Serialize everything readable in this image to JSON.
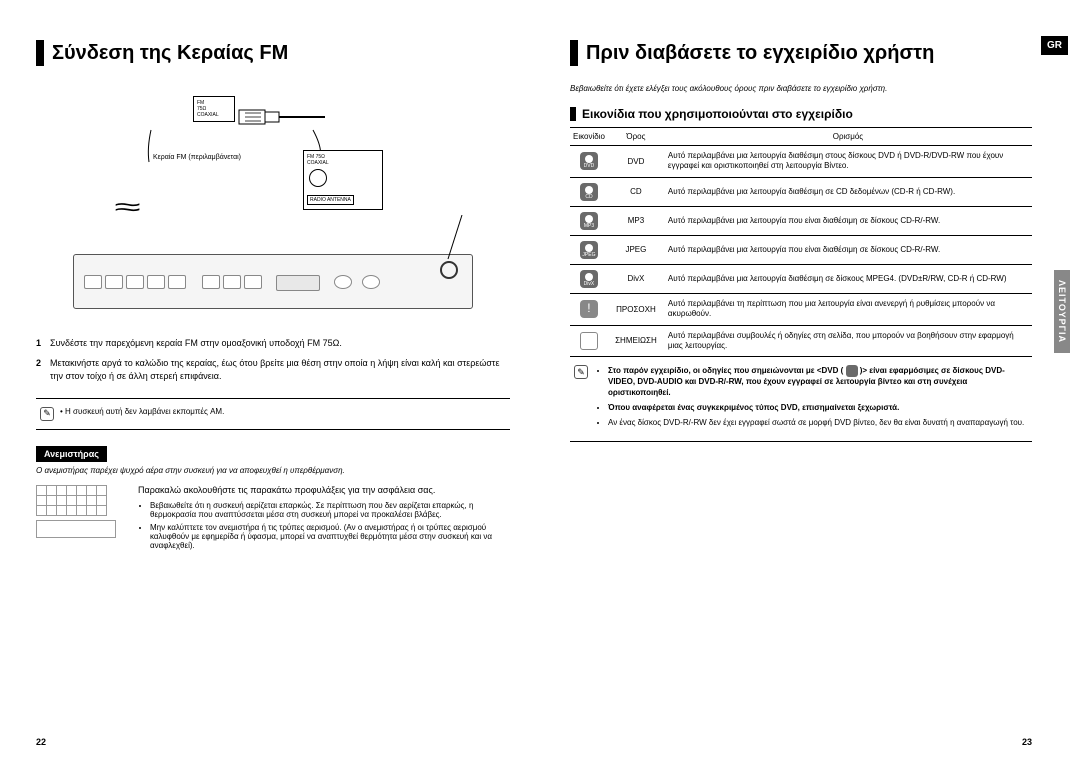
{
  "left": {
    "heading": "Σύνδεση της Κεραίας FM",
    "diagram": {
      "fm_label": "FM\n75Ω",
      "coax_label": "COAXIAL",
      "antenna_caption": "Κεραία FM (περιλαμβάνεται)",
      "radio_antenna_box": "RADIO ANTENNA"
    },
    "steps": [
      "Συνδέστε την παρεχόμενη κεραία FM στην ομοαξονική υποδοχή FM 75Ω.",
      "Μετακινήστε αργά το καλώδιο της κεραίας, έως ότου βρείτε μια θέση στην οποία η λήψη είναι καλή και στερεώστε την στον τοίχο ή σε άλλη στερεή επιφάνεια."
    ],
    "note": "Η συσκευή αυτή δεν λαμβάνει εκπομπές AM.",
    "fan": {
      "title": "Ανεμιστήρας",
      "italic": "Ο ανεμιστήρας παρέχει ψυχρό αέρα στην συσκευή για να αποφευχθεί η υπερθέρμανση.",
      "intro": "Παρακαλώ ακολουθήστε τις παρακάτω προφυλάξεις για την ασφάλεια σας.",
      "bullets": [
        "Βεβαιωθείτε ότι η συσκευή αερίζεται επαρκώς. Σε περίπτωση που δεν αερίζεται επαρκώς, η θερμοκρασία που αναπτύσσεται μέσα στη συσκευή μπορεί να προκαλέσει βλάβες.",
        "Μην καλύπτετε τον ανεμιστήρα ή τις τρύπες αερισμού. (Αν ο ανεμιστήρας ή οι τρύπες αερισμού καλυφθούν με εφημερίδα ή ύφασμα, μπορεί να αναπτυχθεί θερμότητα μέσα στην συσκευή και να αναφλεχθεί)."
      ]
    },
    "page_num": "22"
  },
  "right": {
    "gr_badge": "GR",
    "side_tab": "ΛΕΙΤΟΥΡΓΙΑ",
    "heading": "Πριν διαβάσετε το εγχειρίδιο χρήστη",
    "intro_italic": "Βεβαιωθείτε ότι έχετε ελέγξει τους ακόλουθους όρους πριν διαβάσετε το εγχειρίδιο χρήστη.",
    "subheading": "Εικονίδια που χρησιμοποιούνται στο εγχειρίδιο",
    "table": {
      "headers": {
        "icon": "Εικονίδιο",
        "term": "Όρος",
        "def": "Ορισμός"
      },
      "rows": [
        {
          "icon_text": "●\nDVD",
          "term": "DVD",
          "def": "Αυτό περιλαμβάνει μια λειτουργία διαθέσιμη στους δίσκους DVD ή DVD-R/DVD-RW που έχουν εγγραφεί και οριστικοποιηθεί στη λειτουργία Βίντεο."
        },
        {
          "icon_text": "●\nCD",
          "term": "CD",
          "def": "Αυτό περιλαμβάνει μια λειτουργία διαθέσιμη σε CD δεδομένων (CD-R ή CD-RW)."
        },
        {
          "icon_text": "●\nMP3",
          "term": "MP3",
          "def": "Αυτό περιλαμβάνει μια λειτουργία που είναι διαθέσιμη σε δίσκους CD-R/-RW."
        },
        {
          "icon_text": "●\nJPEG",
          "term": "JPEG",
          "def": "Αυτό περιλαμβάνει μια λειτουργία που είναι διαθέσιμη σε δίσκους CD-R/-RW."
        },
        {
          "icon_text": "●\nDivX",
          "term": "DivX",
          "def": "Αυτό περιλαμβάνει μια λειτουργία διαθέσιμη σε δίσκους MPEG4. (DVD±R/RW, CD-R ή CD-RW)"
        },
        {
          "icon_text": "!",
          "term": "ΠΡΟΣΟΧΗ",
          "def": "Αυτό περιλαμβάνει τη περίπτωση που μια λειτουργία είναι ανενεργή ή ρυθμίσεις μπορούν να ακυρωθούν.",
          "is_caution": true
        },
        {
          "icon_text": "✎",
          "term": "ΣΗΜΕΙΩΣΗ",
          "def": "Αυτό περιλαμβάνει συμβουλές ή οδηγίες στη σελίδα, που μπορούν να βοηθήσουν στην εφαρμογή μιας λειτουργίας.",
          "is_note": true
        }
      ]
    },
    "footnote": {
      "items": [
        {
          "bold": true,
          "text": "Στο παρόν εγχειρίδιο, οι οδηγίες που σημειώνονται με <DVD (  )> είναι εφαρμόσιμες σε δίσκους DVD-VIDEO, DVD-AUDIO και DVD-R/-RW, που έχουν εγγραφεί σε λειτουργία βίντεο και στη συνέχεια οριστικοποιηθεί."
        },
        {
          "bold": true,
          "text": "Όπου αναφέρεται ένας συγκεκριμένος τύπος DVD, επισημαίνεται ξεχωριστά."
        },
        {
          "bold": false,
          "text": "Αν ένας δίσκος DVD-R/-RW δεν έχει εγγραφεί σωστά σε μορφή DVD βίντεο, δεν θα είναι δυνατή η αναπαραγωγή του."
        }
      ]
    },
    "page_num": "23"
  },
  "colors": {
    "text": "#000000",
    "bg": "#ffffff",
    "icon_fill": "#6a6a6a",
    "side_tab_bg": "#888888",
    "diagram_border": "#555555"
  }
}
